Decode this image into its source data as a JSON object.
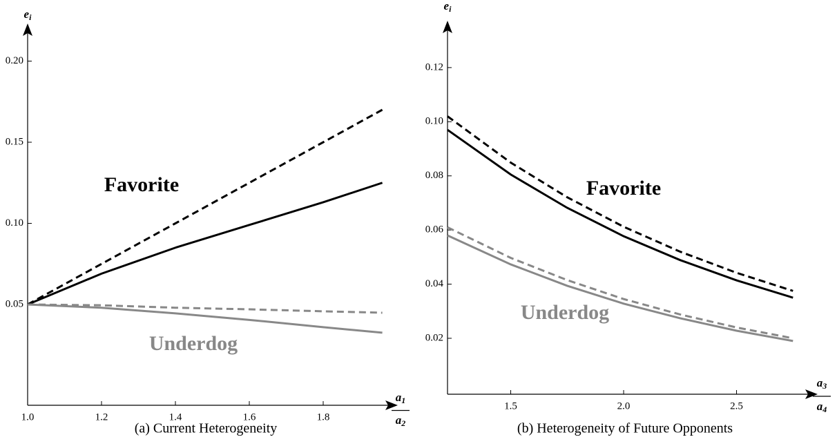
{
  "chart_data": [
    {
      "type": "line",
      "caption": "(a) Current Heterogeneity",
      "ylabel": {
        "main": "e",
        "sub": "i"
      },
      "xlabel": {
        "numerator": {
          "main": "a",
          "sub": "1"
        },
        "denominator": {
          "main": "a",
          "sub": "2"
        }
      },
      "x": [
        1.0,
        1.2,
        1.4,
        1.6,
        1.8,
        1.96
      ],
      "series": [
        {
          "color": "#000000",
          "dash": true,
          "values": [
            0.05,
            0.075,
            0.1,
            0.125,
            0.15,
            0.17
          ]
        },
        {
          "color": "#000000",
          "dash": false,
          "values": [
            0.05,
            0.069,
            0.085,
            0.099,
            0.113,
            0.125
          ]
        },
        {
          "color": "#888888",
          "dash": true,
          "values": [
            0.05,
            0.0495,
            0.048,
            0.047,
            0.0458,
            0.0449
          ]
        },
        {
          "color": "#888888",
          "dash": false,
          "values": [
            0.05,
            0.048,
            0.0445,
            0.0405,
            0.036,
            0.0326
          ]
        }
      ],
      "annotations": [
        {
          "text": "Favorite",
          "color": "#000000"
        },
        {
          "text": "Underdog",
          "color": "#888888"
        }
      ],
      "xlim": [
        1,
        2
      ],
      "ylim": [
        -0.012,
        0.22
      ],
      "xticks": [
        {
          "value": 1,
          "label": "1.0"
        },
        1.2,
        1.4,
        1.6,
        1.8
      ],
      "yticks": [
        0.05,
        {
          "value": 0.1,
          "label": "0.10"
        },
        0.15,
        {
          "value": 0.2,
          "label": "0.20"
        }
      ],
      "grid": false
    },
    {
      "type": "line",
      "caption": "(b) Heterogeneity of Future Opponents",
      "ylabel": {
        "main": "e",
        "sub": "i"
      },
      "xlabel": {
        "numerator": {
          "main": "a",
          "sub": "3"
        },
        "denominator": {
          "main": "a",
          "sub": "4"
        }
      },
      "x": [
        1.22,
        1.5,
        1.75,
        2.0,
        2.25,
        2.5,
        2.75
      ],
      "series": [
        {
          "color": "#000000",
          "dash": true,
          "values": [
            0.102,
            0.0849,
            0.0721,
            0.0612,
            0.052,
            0.0442,
            0.0375
          ]
        },
        {
          "color": "#000000",
          "dash": false,
          "values": [
            0.097,
            0.0805,
            0.0682,
            0.0577,
            0.0489,
            0.0414,
            0.035
          ]
        },
        {
          "color": "#888888",
          "dash": true,
          "values": [
            0.061,
            0.0497,
            0.0415,
            0.0345,
            0.0288,
            0.024,
            0.02
          ]
        },
        {
          "color": "#888888",
          "dash": false,
          "values": [
            0.058,
            0.0473,
            0.0394,
            0.0328,
            0.0274,
            0.0228,
            0.019
          ]
        }
      ],
      "annotations": [
        {
          "text": "Favorite",
          "color": "#000000"
        },
        {
          "text": "Underdog",
          "color": "#888888"
        }
      ],
      "xlim": [
        1.22,
        2.84
      ],
      "ylim": [
        0,
        0.134
      ],
      "xticks": [
        1.5,
        {
          "value": 2,
          "label": "2.0"
        },
        2.5
      ],
      "yticks": [
        0.02,
        0.04,
        0.06,
        0.08,
        {
          "value": 0.1,
          "label": "0.10"
        },
        0.12
      ],
      "grid": false
    }
  ]
}
